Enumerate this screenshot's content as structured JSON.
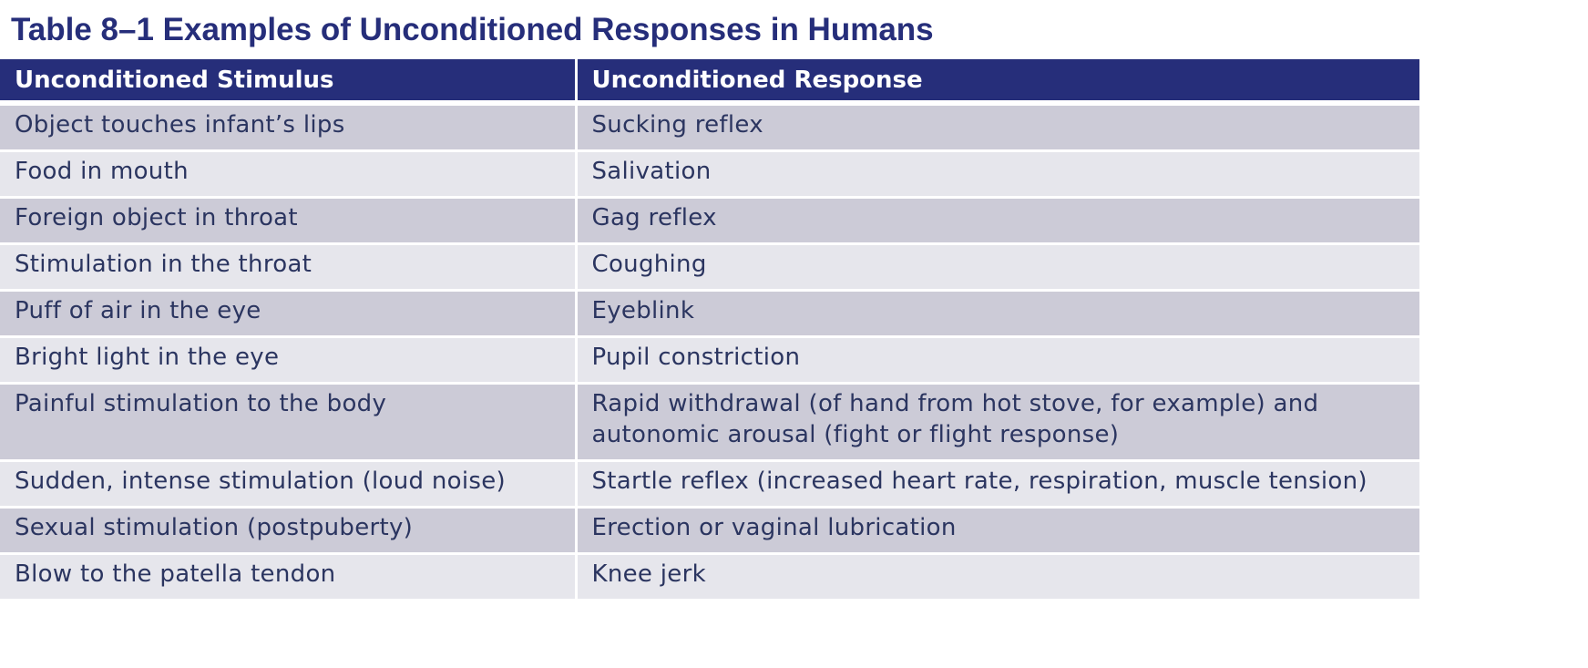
{
  "title": "Table 8–1 Examples of Unconditioned Responses in Humans",
  "columns": [
    "Unconditioned Stimulus",
    "Unconditioned Response"
  ],
  "rows": [
    {
      "stimulus": "Object touches infant’s lips",
      "response": "Sucking reflex"
    },
    {
      "stimulus": "Food in mouth",
      "response": "Salivation"
    },
    {
      "stimulus": "Foreign object in throat",
      "response": "Gag reflex"
    },
    {
      "stimulus": "Stimulation in the throat",
      "response": "Coughing"
    },
    {
      "stimulus": "Puff of air in the eye",
      "response": "Eyeblink"
    },
    {
      "stimulus": "Bright light in the eye",
      "response": "Pupil constriction"
    },
    {
      "stimulus": "Painful stimulation to the body",
      "response": "Rapid withdrawal (of hand from hot stove, for example) and autonomic arousal (fight or flight response)"
    },
    {
      "stimulus": "Sudden, intense stimulation (loud noise)",
      "response": "Startle reflex (increased heart rate, respiration, muscle tension)"
    },
    {
      "stimulus": "Sexual stimulation (postpuberty)",
      "response": "Erection or vaginal lubrication"
    },
    {
      "stimulus": "Blow to the patella tendon",
      "response": "Knee jerk"
    }
  ],
  "colors": {
    "header_bg": "#262e7a",
    "title_text": "#262e7a",
    "row_dark": "#cccbd7",
    "row_light": "#e6e6ec",
    "body_text": "#2b3560"
  }
}
